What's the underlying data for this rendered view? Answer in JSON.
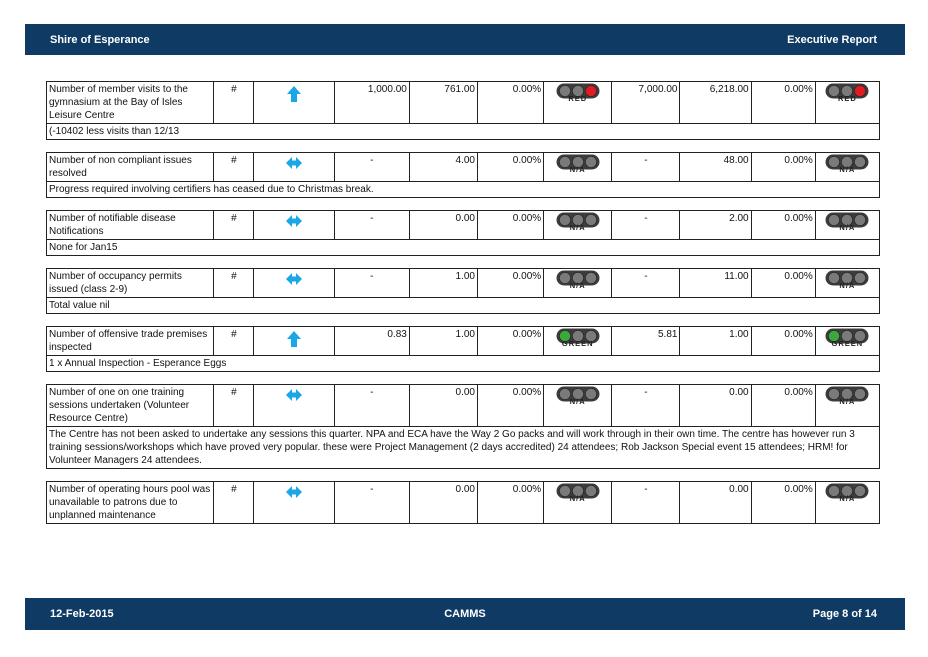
{
  "header": {
    "org": "Shire of Esperance",
    "report": "Executive Report"
  },
  "footer": {
    "date": "12-Feb-2015",
    "system": "CAMMS",
    "page": "Page 8 of 14"
  },
  "colors": {
    "bar": "#0f3a63",
    "arrow": "#1aa7e6",
    "red": "#e11b22",
    "green": "#3aa83a",
    "off": "#7a7a7a"
  },
  "rows": [
    {
      "measure": "Number of member visits to the gymnasium at the Bay of Isles Leisure Centre",
      "unit": "#",
      "trend": "up-arrow",
      "target_month": "1,000.00",
      "actual_month": "761.00",
      "var_month": "0.00%",
      "status_month": "RED",
      "target_ytd": "7,000.00",
      "actual_ytd": "6,218.00",
      "var_ytd": "0.00%",
      "status_ytd": "RED",
      "comment": "(-10402 less visits than 12/13"
    },
    {
      "measure": "Number of non compliant issues resolved",
      "unit": "#",
      "trend": "steady-arrow",
      "target_month": "-",
      "actual_month": "4.00",
      "var_month": "0.00%",
      "status_month": "N/A",
      "target_ytd": "-",
      "actual_ytd": "48.00",
      "var_ytd": "0.00%",
      "status_ytd": "N/A",
      "comment": "Progress required involving certifiers has ceased due to Christmas break."
    },
    {
      "measure": "Number of notifiable disease Notifications",
      "unit": "#",
      "trend": "steady-arrow",
      "target_month": "-",
      "actual_month": "0.00",
      "var_month": "0.00%",
      "status_month": "N/A",
      "target_ytd": "-",
      "actual_ytd": "2.00",
      "var_ytd": "0.00%",
      "status_ytd": "N/A",
      "comment": "None for Jan15"
    },
    {
      "measure": "Number of occupancy permits issued (class 2-9)",
      "unit": "#",
      "trend": "steady-arrow",
      "target_month": "-",
      "actual_month": "1.00",
      "var_month": "0.00%",
      "status_month": "N/A",
      "target_ytd": "-",
      "actual_ytd": "11.00",
      "var_ytd": "0.00%",
      "status_ytd": "N/A",
      "comment": "Total value nil"
    },
    {
      "measure": "Number of offensive trade premises inspected",
      "unit": "#",
      "trend": "up-arrow",
      "target_month": "0.83",
      "actual_month": "1.00",
      "var_month": "0.00%",
      "status_month": "GREEN",
      "target_ytd": "5.81",
      "actual_ytd": "1.00",
      "var_ytd": "0.00%",
      "status_ytd": "GREEN",
      "comment": "1 x Annual Inspection - Esperance Eggs"
    },
    {
      "measure": "Number of one on one training sessions undertaken (Volunteer Resource Centre)",
      "unit": "#",
      "trend": "steady-arrow",
      "target_month": "-",
      "actual_month": "0.00",
      "var_month": "0.00%",
      "status_month": "N/A",
      "target_ytd": "-",
      "actual_ytd": "0.00",
      "var_ytd": "0.00%",
      "status_ytd": "N/A",
      "comment": "The Centre has not been asked to undertake any sessions this quarter.  NPA and ECA have the Way 2 Go packs and will work through in their own time.  The centre has however run 3 training sessions/workshops which have proved very popular.  these were Project Management (2 days accredited) 24 attendees; Rob Jackson Special event 15 attendees; HRM! for Volunteer Managers 24 attendees."
    },
    {
      "measure": "Number of operating hours pool was unavailable to patrons due to unplanned maintenance",
      "unit": "#",
      "trend": "steady-arrow",
      "target_month": "-",
      "actual_month": "0.00",
      "var_month": "0.00%",
      "status_month": "N/A",
      "target_ytd": "-",
      "actual_ytd": "0.00",
      "var_ytd": "0.00%",
      "status_ytd": "N/A",
      "comment": null
    }
  ]
}
